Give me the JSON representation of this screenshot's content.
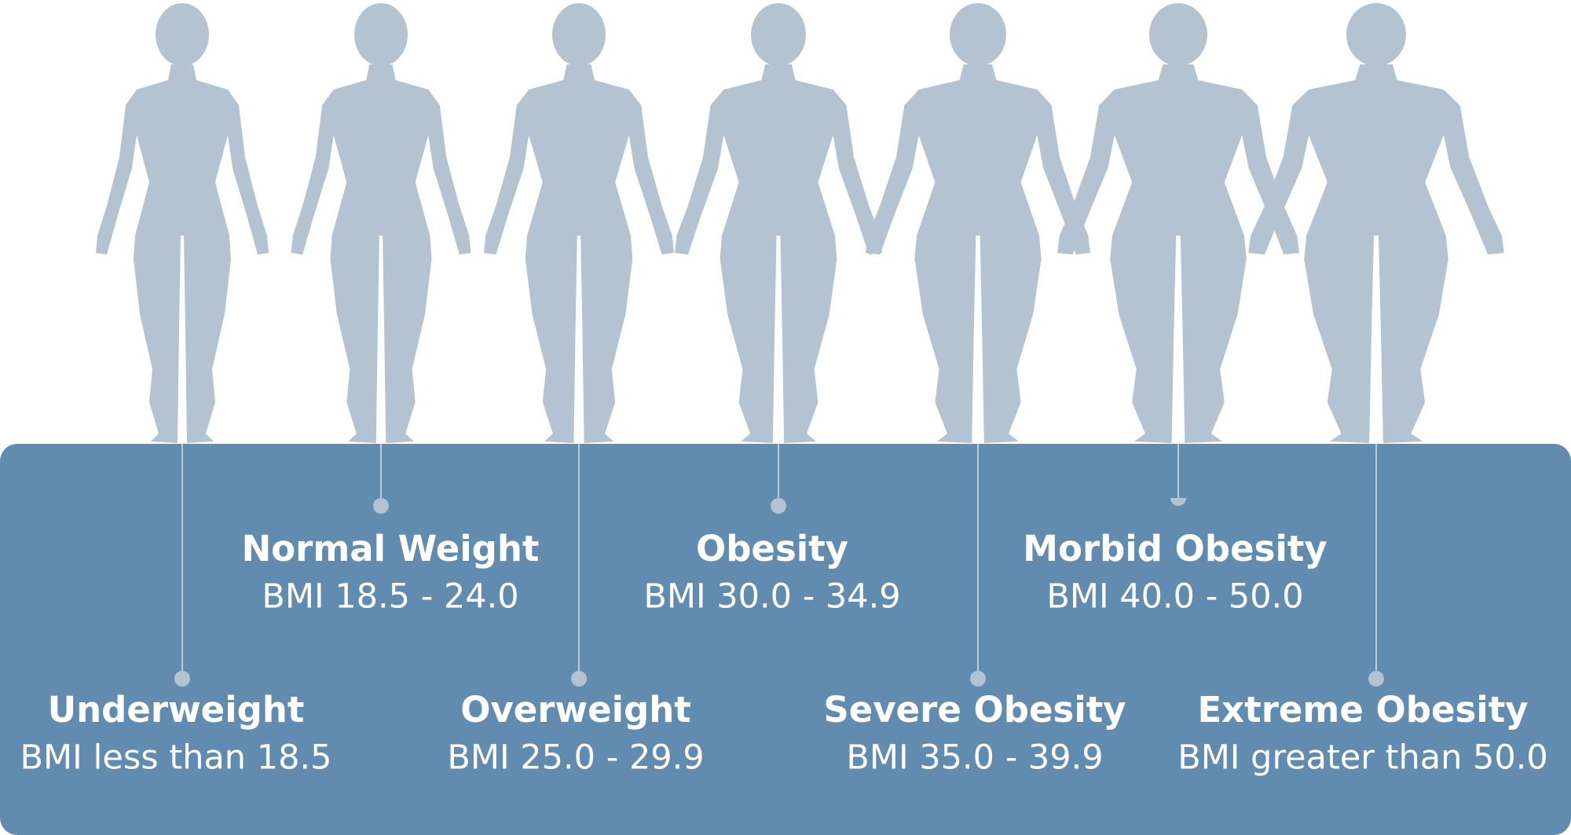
{
  "categories": [
    {
      "title": "Underweight",
      "range": "BMI less than 18.5"
    },
    {
      "title": "Normal Weight",
      "range": "BMI 18.5 - 24.0"
    },
    {
      "title": "Overweight",
      "range": "BMI 25.0 - 29.9"
    },
    {
      "title": "Obesity",
      "range": "BMI 30.0 - 34.9"
    },
    {
      "title": "Severe Obesity",
      "range": "BMI 35.0 - 39.9"
    },
    {
      "title": "Morbid Obesity",
      "range": "BMI 40.0 - 50.0"
    },
    {
      "title": "Extreme Obesity",
      "range": "BMI greater than 50.0"
    }
  ]
}
